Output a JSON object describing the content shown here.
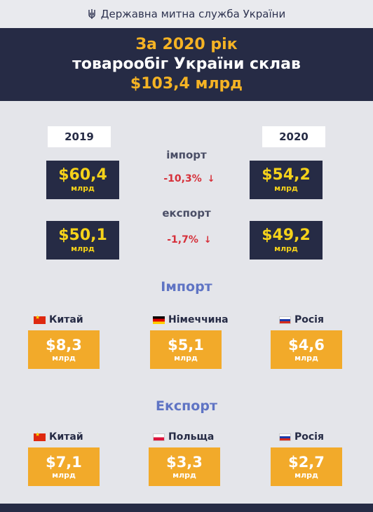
{
  "header": {
    "agency": "Державна митна служба України"
  },
  "banner": {
    "line1": "За 2020 рік",
    "line2": "товарообіг України склав",
    "line3": "$103,4 млрд"
  },
  "years": {
    "left": "2019",
    "right": "2020"
  },
  "import_compare": {
    "label": "імпорт",
    "value_2019": "$60,4",
    "value_2020": "$54,2",
    "unit": "млрд",
    "change": "-10,3%"
  },
  "export_compare": {
    "label": "експорт",
    "value_2019": "$50,1",
    "value_2020": "$49,2",
    "unit": "млрд",
    "change": "-1,7%"
  },
  "import_section": {
    "title": "Імпорт",
    "countries": [
      {
        "name": "Китай",
        "value": "$8,3",
        "unit": "млрд"
      },
      {
        "name": "Німеччина",
        "value": "$5,1",
        "unit": "млрд"
      },
      {
        "name": "Росія",
        "value": "$4,6",
        "unit": "млрд"
      }
    ]
  },
  "export_section": {
    "title": "Експорт",
    "countries": [
      {
        "name": "Китай",
        "value": "$7,1",
        "unit": "млрд"
      },
      {
        "name": "Польща",
        "value": "$3,3",
        "unit": "млрд"
      },
      {
        "name": "Росія",
        "value": "$2,7",
        "unit": "млрд"
      }
    ]
  },
  "icons": {
    "agency": "trident-icon",
    "decrease": "arrow-down-icon",
    "flags": [
      "china-flag-icon",
      "germany-flag-icon",
      "russia-flag-icon",
      "poland-flag-icon"
    ]
  },
  "colors": {
    "navy": "#262b45",
    "yellow": "#f5d21a",
    "orange": "#f2aa2a",
    "red": "#d6303a",
    "section_blue": "#5f74c4",
    "background": "#e4e5ea"
  }
}
